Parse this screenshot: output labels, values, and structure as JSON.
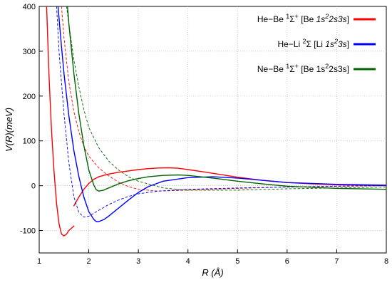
{
  "chart_data": {
    "type": "line",
    "title": "",
    "xlabel": "R  (Å)",
    "ylabel": "V(R)(meV)",
    "xlim": [
      1,
      8
    ],
    "ylim": [
      -150,
      400
    ],
    "xticks": [
      1,
      2,
      3,
      4,
      5,
      6,
      7,
      8
    ],
    "yticks": [
      -100,
      0,
      100,
      200,
      300,
      400
    ],
    "grid": true,
    "legend_position": "top-right",
    "series": [
      {
        "name": "He−Be ¹Σ⁺ [Be 1s²2s3s]",
        "color": "#ff0000",
        "style": "solid",
        "x": [
          1.15,
          1.2,
          1.25,
          1.3,
          1.35,
          1.4,
          1.45,
          1.5,
          1.55,
          1.6,
          1.65,
          1.7
        ],
        "y": [
          400,
          240,
          120,
          30,
          -40,
          -85,
          -108,
          -112,
          -108,
          -100,
          -95,
          -90
        ]
      },
      {
        "name": "He−Be ¹Σ⁺ [Be 1s²2s3s] (dashed)",
        "color": "#ff0000",
        "style": "dashed",
        "x": [
          1.45,
          1.5,
          1.6,
          1.7,
          1.8,
          1.9,
          2.0,
          2.2,
          2.4,
          2.6,
          2.8,
          3.0,
          3.4,
          4.0,
          5.0,
          6.0,
          8.0
        ],
        "y": [
          400,
          330,
          230,
          165,
          120,
          88,
          66,
          40,
          22,
          8,
          -2,
          -8,
          -12,
          -10,
          -6,
          -3,
          0
        ]
      },
      {
        "name": "He−Be ¹Σ⁺ [Be 1s²2s3s] (upper)",
        "color": "#ff0000",
        "style": "solid",
        "x": [
          1.7,
          1.8,
          1.9,
          2.0,
          2.1,
          2.2,
          2.4,
          2.6,
          2.8,
          3.0,
          3.2,
          3.4,
          3.6,
          3.8,
          4.0,
          4.3,
          4.6,
          5.0,
          5.5,
          6.0,
          6.5,
          7.0,
          8.0
        ],
        "y": [
          -45,
          -25,
          -8,
          5,
          14,
          20,
          26,
          30,
          33,
          36,
          38,
          39.5,
          40,
          39,
          36,
          31,
          26,
          19,
          12,
          7,
          4,
          2,
          0
        ]
      },
      {
        "name": "He−Li ²Σ [Li 1s²3s]",
        "color": "#0000ff",
        "style": "solid",
        "x": [
          1.38,
          1.45,
          1.5,
          1.6,
          1.7,
          1.8,
          1.9,
          2.0,
          2.1,
          2.15,
          2.2,
          2.3,
          2.4,
          2.6,
          2.8,
          3.0,
          3.2,
          3.5,
          4.0,
          4.5,
          5.0,
          5.5,
          6.0,
          7.0,
          8.0
        ],
        "y": [
          400,
          310,
          250,
          155,
          78,
          20,
          -25,
          -58,
          -75,
          -80,
          -80,
          -76,
          -68,
          -50,
          -32,
          -15,
          -2,
          10,
          18,
          20,
          17,
          12,
          7,
          3,
          1
        ]
      },
      {
        "name": "He−Li ²Σ [Li 1s²3s] (dashed)",
        "color": "#0000ff",
        "style": "dashed",
        "x": [
          1.35,
          1.4,
          1.5,
          1.6,
          1.7,
          1.8,
          1.9,
          2.0,
          2.2,
          2.4,
          2.6,
          2.8,
          3.0,
          3.4,
          4.0,
          5.0,
          6.0,
          7.0,
          8.0
        ],
        "y": [
          400,
          300,
          160,
          50,
          -25,
          -60,
          -70,
          -68,
          -55,
          -42,
          -32,
          -24,
          -18,
          -12,
          -8,
          -5,
          -3,
          -1,
          0
        ]
      },
      {
        "name": "Ne−Be ¹Σ⁺ [Be 1s²2s3s]",
        "color": "#006400",
        "style": "solid",
        "x": [
          1.57,
          1.6,
          1.7,
          1.8,
          1.9,
          2.0,
          2.1,
          2.15,
          2.2,
          2.3,
          2.4,
          2.6,
          2.8,
          3.0,
          3.2,
          3.5,
          3.8,
          4.0,
          4.5,
          5.0,
          5.5,
          6.0,
          7.0,
          8.0
        ],
        "y": [
          400,
          360,
          250,
          160,
          90,
          35,
          2,
          -9,
          -12,
          -10,
          -5,
          4,
          11,
          16,
          20,
          23,
          24,
          23,
          17,
          10,
          4,
          -1,
          -6,
          -8
        ]
      },
      {
        "name": "Ne−Be ¹Σ⁺ [Be 1s²2s3s] (dashed)",
        "color": "#006400",
        "style": "dashed",
        "x": [
          1.55,
          1.6,
          1.7,
          1.8,
          1.9,
          2.0,
          2.2,
          2.4,
          2.6,
          2.8,
          3.0,
          3.5,
          4.0,
          5.0,
          6.0,
          7.0,
          8.0
        ],
        "y": [
          400,
          360,
          280,
          220,
          170,
          130,
          85,
          55,
          35,
          20,
          10,
          -5,
          -10,
          -10,
          -7,
          -5,
          -3
        ]
      }
    ],
    "legend": [
      {
        "label_a": "He−Be ",
        "sup1": "1",
        "greek": "Σ",
        "sup2": "+",
        "bracket": " [Be ",
        "conf": "1s",
        "conf_sup": "2",
        "conf_rest": "2s3s",
        "close": "]",
        "italic_conf": true,
        "color": "#ff0000"
      },
      {
        "label_a": "He−Li  ",
        "sup1": "2",
        "greek": "Σ",
        "sup2": "",
        "bracket": "  [Li ",
        "conf": "1s",
        "conf_sup": "2",
        "conf_rest": "3s",
        "close": "]",
        "italic_conf": true,
        "color": "#0000ff"
      },
      {
        "label_a": "Ne−Be ",
        "sup1": "1",
        "greek": "Σ",
        "sup2": "+",
        "bracket": " [Be 1s",
        "conf": "",
        "conf_sup": "2",
        "conf_rest": "2s3s",
        "close": "]",
        "italic_conf": false,
        "color": "#006400"
      }
    ]
  }
}
